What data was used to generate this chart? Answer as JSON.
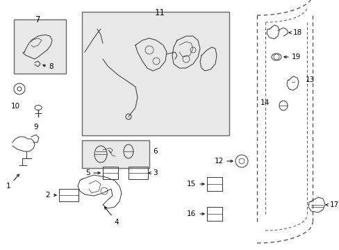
{
  "bg_color": "#ffffff",
  "fig_width": 4.89,
  "fig_height": 3.6,
  "dpi": 100,
  "line_color": "#000000",
  "part_color": "#333333",
  "box_edge": "#666666",
  "box_face": "#e8e8e8",
  "door_dash": "#555555"
}
